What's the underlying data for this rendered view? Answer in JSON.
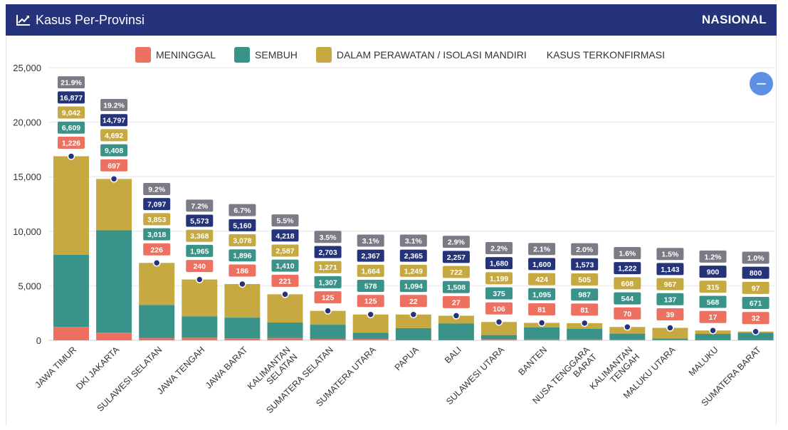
{
  "header": {
    "title": "Kasus Per-Provinsi",
    "scope": "NASIONAL",
    "icon": "line-chart-icon"
  },
  "zoom_button": {
    "label": "−",
    "icon": "minus-icon"
  },
  "colors": {
    "header": "#25347a",
    "meninggal": "#ee7060",
    "sembuh": "#3a9389",
    "perawatan": "#c7a941",
    "terkonfirmasi": "#25347a",
    "percent": "#7b7b86"
  },
  "chart_data": {
    "type": "bar",
    "stacked": true,
    "title": "",
    "xlabel": "",
    "ylabel": "",
    "ylim": [
      0,
      25000
    ],
    "yticks": [
      "0",
      "5,000",
      "10,000",
      "15,000",
      "20,000",
      "25,000"
    ],
    "grid": true,
    "legend_placement": "top",
    "legend": [
      "MENINGGAL",
      "SEMBUH",
      "DALAM PERAWATAN / ISOLASI MANDIRI",
      "KASUS TERKONFIRMASI"
    ],
    "categories": [
      [
        "JAWA TIMUR"
      ],
      [
        "DKI JAKARTA"
      ],
      [
        "SULAWESI SELATAN"
      ],
      [
        "JAWA TENGAH"
      ],
      [
        "JAWA BARAT"
      ],
      [
        "KALIMANTAN",
        "SELATAN"
      ],
      [
        "SUMATERA SELATAN"
      ],
      [
        "SUMATERA UTARA"
      ],
      [
        "PAPUA"
      ],
      [
        "BALI"
      ],
      [
        "SULAWESI UTARA"
      ],
      [
        "BANTEN"
      ],
      [
        "NUSA TENGGARA",
        "BARAT"
      ],
      [
        "KALIMANTAN",
        "TENGAH"
      ],
      [
        "MALUKU UTARA"
      ],
      [
        "MALUKU"
      ],
      [
        "SUMATERA BARAT"
      ]
    ],
    "series": [
      {
        "name": "MENINGGAL",
        "values": [
          1226,
          697,
          226,
          240,
          186,
          221,
          125,
          125,
          22,
          27,
          106,
          81,
          81,
          70,
          39,
          17,
          32
        ],
        "labels": [
          "1,226",
          "697",
          "226",
          "240",
          "186",
          "221",
          "125",
          "125",
          "22",
          "27",
          "106",
          "81",
          "81",
          "70",
          "39",
          "17",
          "32"
        ]
      },
      {
        "name": "SEMBUH",
        "values": [
          6609,
          9408,
          3018,
          1965,
          1896,
          1410,
          1307,
          578,
          1094,
          1508,
          375,
          1095,
          987,
          544,
          137,
          568,
          671
        ],
        "labels": [
          "6,609",
          "9,408",
          "3,018",
          "1,965",
          "1,896",
          "1,410",
          "1,307",
          "578",
          "1,094",
          "1,508",
          "375",
          "1,095",
          "987",
          "544",
          "137",
          "568",
          "671"
        ]
      },
      {
        "name": "DALAM PERAWATAN / ISOLASI MANDIRI",
        "values": [
          9042,
          4692,
          3853,
          3368,
          3078,
          2587,
          1271,
          1664,
          1249,
          722,
          1199,
          424,
          505,
          608,
          967,
          315,
          97
        ],
        "labels": [
          "9,042",
          "4,692",
          "3,853",
          "3,368",
          "3,078",
          "2,587",
          "1,271",
          "1,664",
          "1,249",
          "722",
          "1,199",
          "424",
          "505",
          "608",
          "967",
          "315",
          "97"
        ]
      }
    ],
    "confirmed": {
      "name": "KASUS TERKONFIRMASI",
      "values": [
        16877,
        14797,
        7097,
        5573,
        5160,
        4218,
        2703,
        2367,
        2365,
        2257,
        1680,
        1600,
        1573,
        1222,
        1143,
        900,
        800
      ],
      "labels": [
        "16,877",
        "14,797",
        "7,097",
        "5,573",
        "5,160",
        "4,218",
        "2,703",
        "2,367",
        "2,365",
        "2,257",
        "1,680",
        "1,600",
        "1,573",
        "1,222",
        "1,143",
        "900",
        "800"
      ]
    },
    "percent_labels": [
      "21.9%",
      "19.2%",
      "9.2%",
      "7.2%",
      "6.7%",
      "5.5%",
      "3.5%",
      "3.1%",
      "3.1%",
      "2.9%",
      "2.2%",
      "2.1%",
      "2.0%",
      "1.6%",
      "1.5%",
      "1.2%",
      "1.0%"
    ]
  }
}
